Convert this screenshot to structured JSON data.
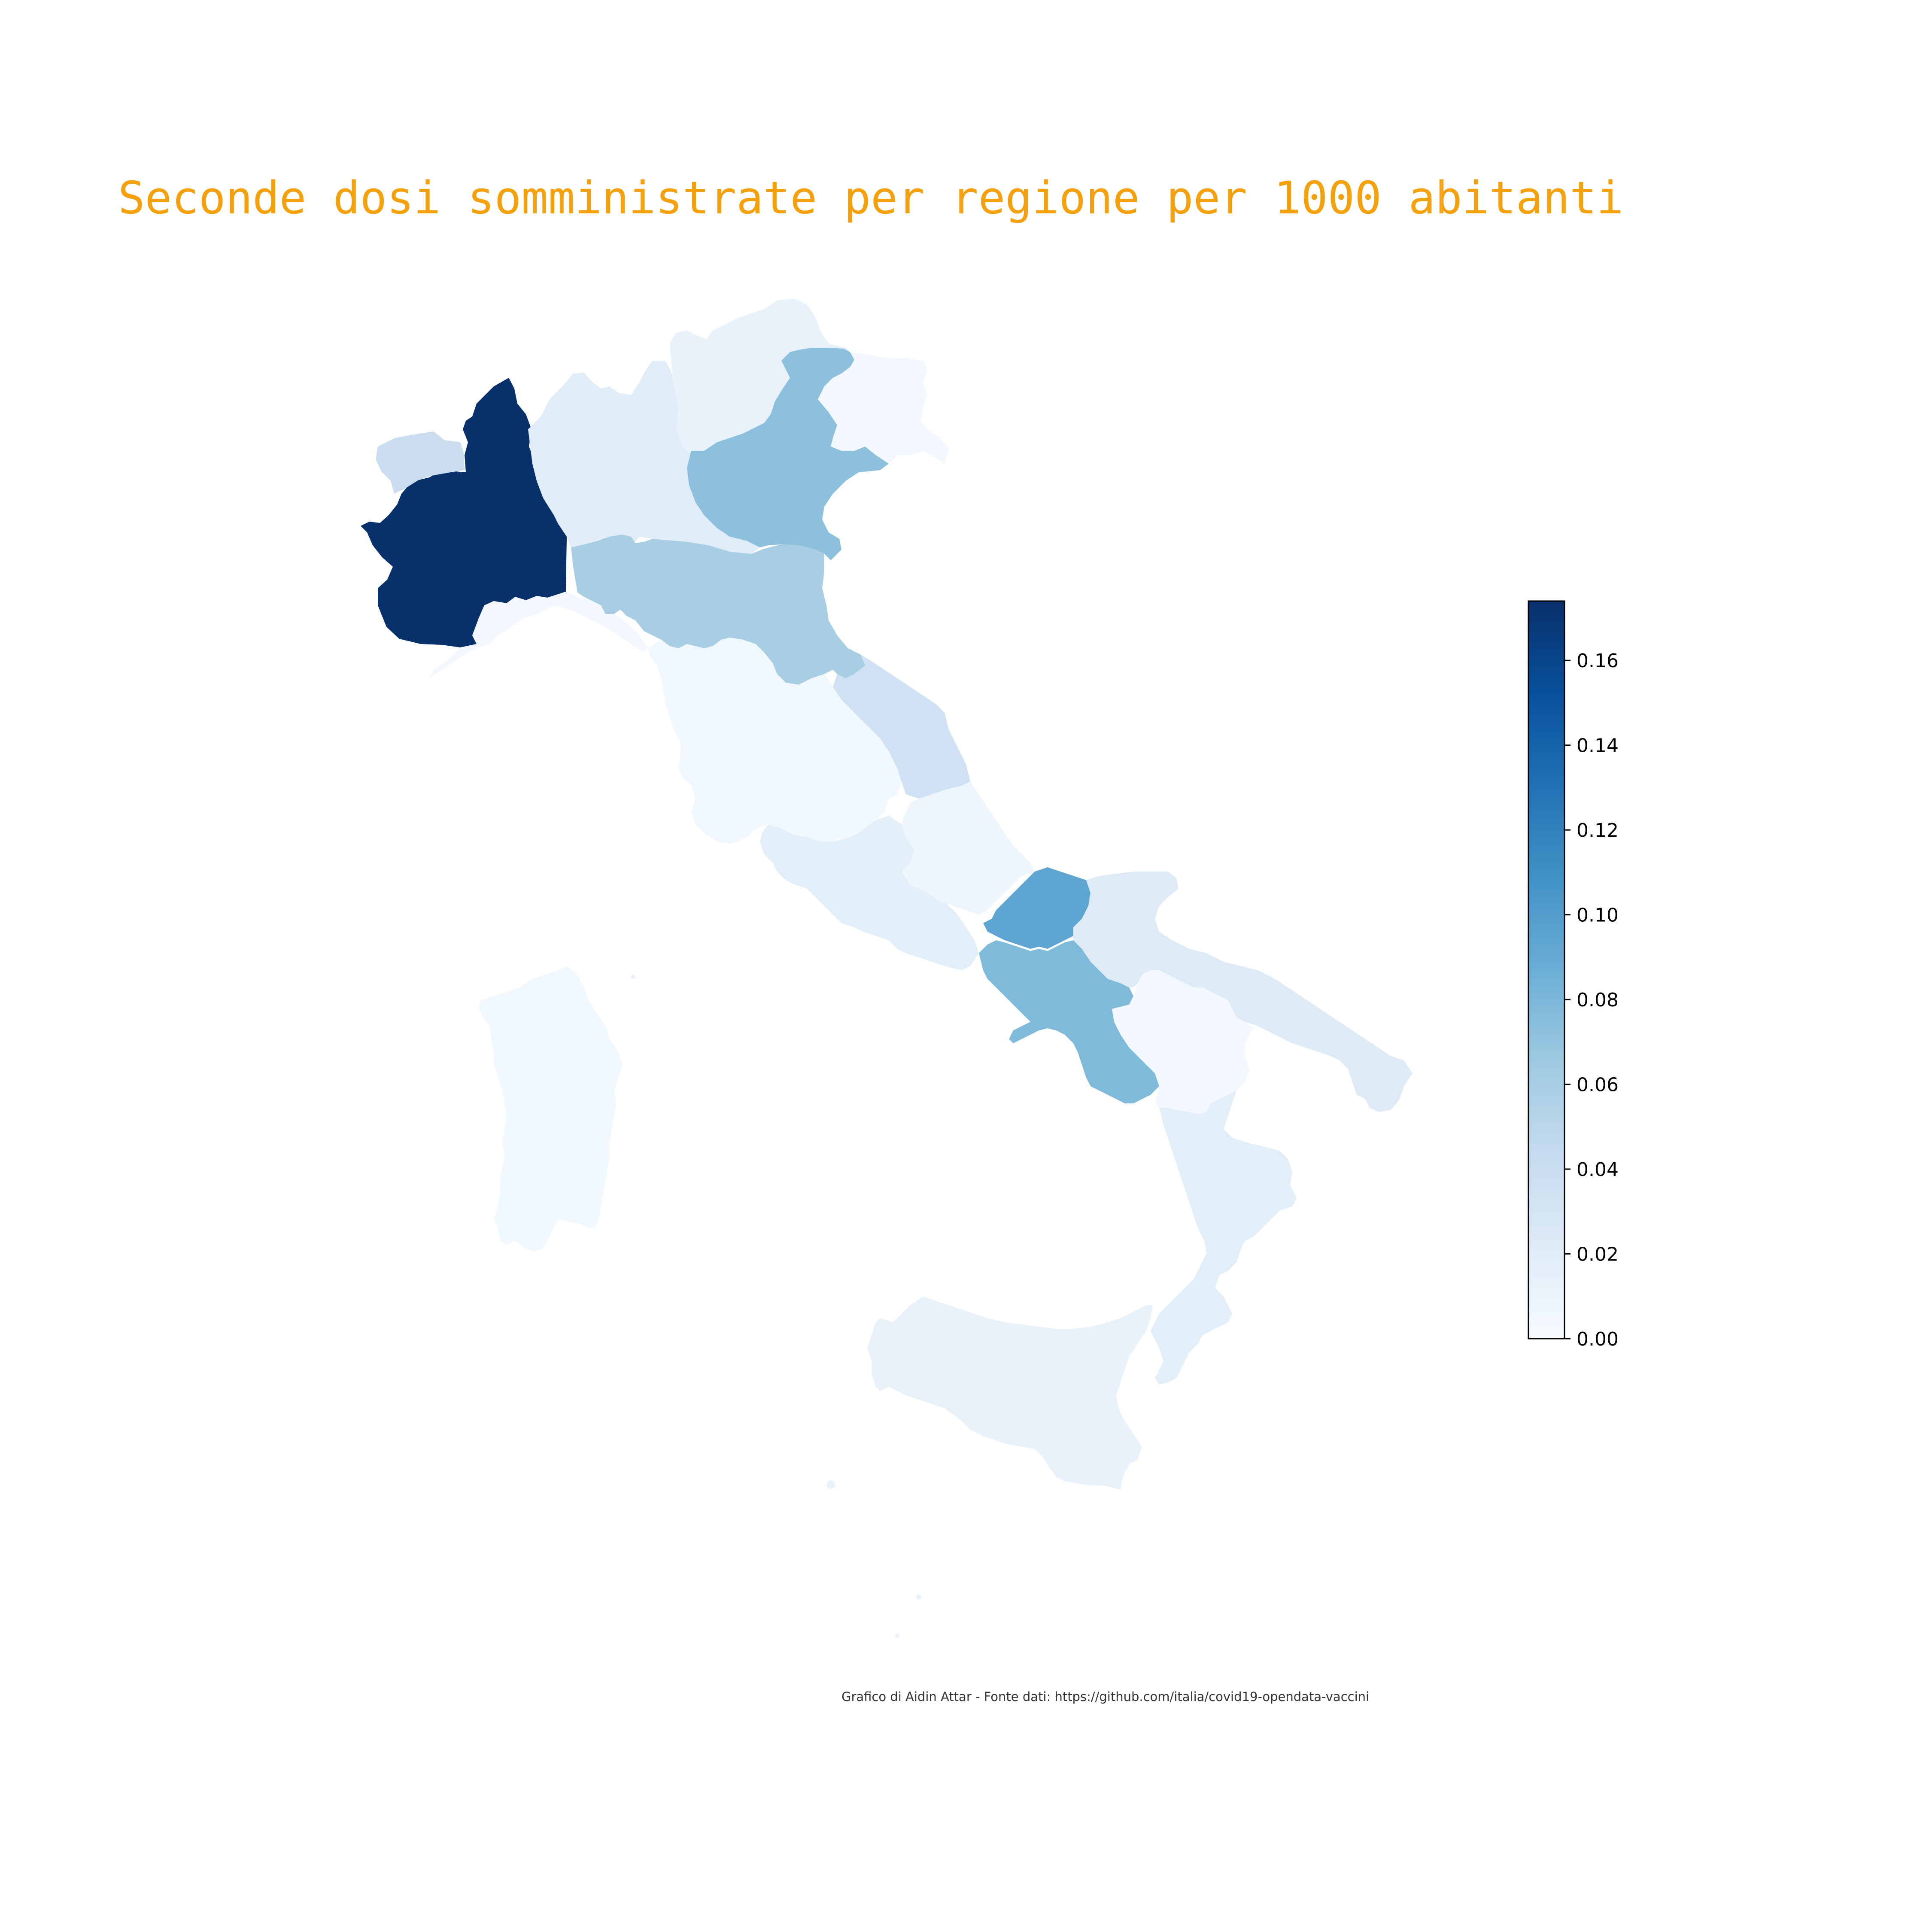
{
  "title": "Seconde dosi somministrate per regione per 1000 abitanti",
  "credit": "Grafico di Aidin Attar - Fonte dati: https://github.com/italia/covid19-opendata-vaccini",
  "colors": {
    "title": "#f5a10d",
    "colormap": "Blues",
    "colormap_stops": [
      "#f7fbff",
      "#deebf7",
      "#c6dbef",
      "#9ecae1",
      "#6baed6",
      "#4292c6",
      "#2171b5",
      "#08519c",
      "#08306b"
    ]
  },
  "colorbar": {
    "min": 0.0,
    "max": 0.174,
    "ticks": [
      "0.00",
      "0.02",
      "0.04",
      "0.06",
      "0.08",
      "0.10",
      "0.12",
      "0.14",
      "0.16"
    ],
    "tick_values": [
      0.0,
      0.02,
      0.04,
      0.06,
      0.08,
      0.1,
      0.12,
      0.14,
      0.16
    ]
  },
  "chart_data": {
    "type": "choropleth",
    "scale": "Blues",
    "range": [
      0.0,
      0.174
    ],
    "regions": [
      {
        "id": "piemonte",
        "value": 0.174
      },
      {
        "id": "valle-d-aosta",
        "value": 0.04
      },
      {
        "id": "lombardia",
        "value": 0.02
      },
      {
        "id": "trentino-alto-adige",
        "value": 0.012
      },
      {
        "id": "veneto",
        "value": 0.073
      },
      {
        "id": "friuli-venezia-giulia",
        "value": 0.004
      },
      {
        "id": "liguria",
        "value": 0.004
      },
      {
        "id": "emilia-romagna",
        "value": 0.06
      },
      {
        "id": "toscana",
        "value": 0.006
      },
      {
        "id": "umbria",
        "value": 0.006
      },
      {
        "id": "marche",
        "value": 0.035
      },
      {
        "id": "lazio",
        "value": 0.018
      },
      {
        "id": "abruzzo",
        "value": 0.008
      },
      {
        "id": "molise",
        "value": 0.094
      },
      {
        "id": "campania",
        "value": 0.078
      },
      {
        "id": "puglia",
        "value": 0.022
      },
      {
        "id": "basilicata",
        "value": 0.004
      },
      {
        "id": "calabria",
        "value": 0.018
      },
      {
        "id": "sicilia",
        "value": 0.012
      },
      {
        "id": "sardegna",
        "value": 0.006
      }
    ]
  }
}
